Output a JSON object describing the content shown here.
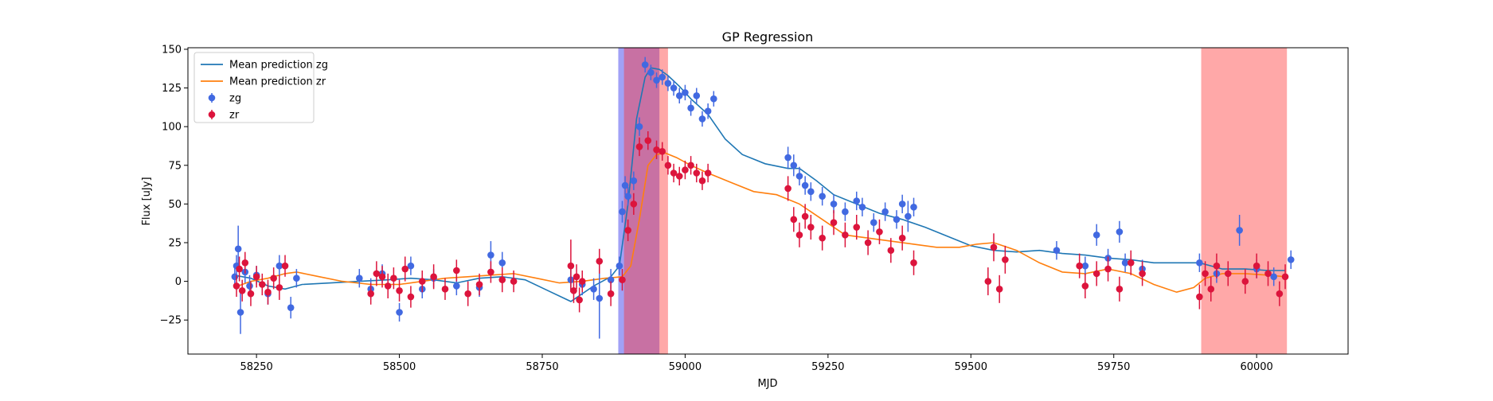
{
  "chart_data": {
    "type": "scatter",
    "title": "GP Regression",
    "xlabel": "MJD",
    "ylabel": "Flux [uJy]",
    "xlim": [
      58130,
      60160
    ],
    "ylim": [
      -47,
      151
    ],
    "xticks": [
      58250,
      58500,
      58750,
      59000,
      59250,
      59500,
      59750,
      60000
    ],
    "yticks": [
      -25,
      0,
      25,
      50,
      75,
      100,
      125,
      150
    ],
    "grid": false,
    "legend_position": "top-left",
    "legend": [
      {
        "label": "Mean prediction zg",
        "kind": "line",
        "color": "#1f77b4"
      },
      {
        "label": "Mean prediction zr",
        "kind": "line",
        "color": "#ff7f0e"
      },
      {
        "label": "zg",
        "kind": "marker",
        "color": "#4169e1"
      },
      {
        "label": "zr",
        "kind": "marker",
        "color": "#dc143c"
      }
    ],
    "shaded_regions": [
      {
        "x0": 58883,
        "x1": 58955,
        "color": "#4444ee",
        "opacity": 0.5
      },
      {
        "x0": 58893,
        "x1": 58970,
        "color": "#ff3030",
        "opacity": 0.42
      },
      {
        "x0": 59903,
        "x1": 60053,
        "color": "#ff3030",
        "opacity": 0.42
      }
    ],
    "series": [
      {
        "name": "Mean prediction zg",
        "kind": "line",
        "color": "#1f77b4",
        "x": [
          58210,
          58240,
          58270,
          58300,
          58330,
          58380,
          58430,
          58480,
          58520,
          58560,
          58600,
          58640,
          58680,
          58720,
          58760,
          58800,
          58840,
          58870,
          58885,
          58900,
          58915,
          58930,
          58940,
          58955,
          58970,
          58990,
          59010,
          59040,
          59070,
          59100,
          59140,
          59180,
          59200,
          59230,
          59260,
          59300,
          59340,
          59380,
          59420,
          59460,
          59500,
          59540,
          59580,
          59620,
          59660,
          59700,
          59740,
          59780,
          59820,
          59860,
          59900,
          59940,
          59980,
          60020,
          60050
        ],
        "y": [
          4,
          2,
          -3,
          -5,
          -2,
          -1,
          0,
          1,
          2,
          1,
          -1,
          2,
          3,
          1,
          -6,
          -13,
          -3,
          3,
          10,
          50,
          105,
          132,
          138,
          137,
          133,
          126,
          118,
          108,
          92,
          82,
          76,
          73,
          73,
          65,
          56,
          50,
          44,
          40,
          35,
          29,
          23,
          20,
          19,
          20,
          18,
          17,
          15,
          14,
          12,
          12,
          12,
          8,
          8,
          7,
          7
        ]
      },
      {
        "name": "Mean prediction zr",
        "kind": "line",
        "color": "#ff7f0e",
        "x": [
          58210,
          58240,
          58270,
          58300,
          58320,
          58360,
          58400,
          58450,
          58500,
          58540,
          58580,
          58620,
          58660,
          58700,
          58740,
          58780,
          58820,
          58860,
          58890,
          58905,
          58920,
          58935,
          58950,
          58965,
          58985,
          59010,
          59040,
          59080,
          59120,
          59160,
          59200,
          59240,
          59280,
          59320,
          59360,
          59400,
          59440,
          59480,
          59510,
          59540,
          59580,
          59620,
          59660,
          59700,
          59740,
          59780,
          59820,
          59860,
          59890,
          59910,
          59940,
          59980,
          60020,
          60050
        ],
        "y": [
          -4,
          0,
          2,
          5,
          6,
          3,
          0,
          -2,
          -2,
          0,
          2,
          3,
          4,
          5,
          2,
          -1,
          0,
          2,
          3,
          10,
          40,
          75,
          82,
          83,
          80,
          75,
          70,
          64,
          58,
          56,
          50,
          40,
          30,
          28,
          26,
          24,
          22,
          22,
          24,
          25,
          20,
          12,
          6,
          5,
          8,
          5,
          -2,
          -7,
          -4,
          2,
          5,
          5,
          4,
          3
        ]
      },
      {
        "name": "zg",
        "kind": "errorbar",
        "color": "#4169e1",
        "x": [
          58212,
          58215,
          58218,
          58222,
          58230,
          58238,
          58250,
          58270,
          58290,
          58310,
          58320,
          58430,
          58450,
          58470,
          58500,
          58520,
          58540,
          58560,
          58600,
          58640,
          58660,
          58680,
          58800,
          58820,
          58840,
          58850,
          58870,
          58885,
          58890,
          58895,
          58900,
          58910,
          58920,
          58930,
          58940,
          58950,
          58960,
          58970,
          58980,
          58990,
          59000,
          59010,
          59020,
          59030,
          59040,
          59050,
          59180,
          59190,
          59200,
          59210,
          59220,
          59240,
          59260,
          59280,
          59300,
          59310,
          59330,
          59350,
          59370,
          59380,
          59390,
          59400,
          59650,
          59700,
          59720,
          59740,
          59760,
          59770,
          59800,
          59900,
          59930,
          59970,
          60000,
          60030,
          60060
        ],
        "y": [
          3,
          10,
          21,
          -20,
          6,
          -3,
          4,
          -8,
          10,
          -17,
          2,
          2,
          -5,
          5,
          -20,
          10,
          -5,
          2,
          -3,
          -4,
          17,
          12,
          1,
          -2,
          -5,
          -11,
          1,
          10,
          45,
          62,
          55,
          65,
          100,
          140,
          135,
          130,
          132,
          128,
          125,
          120,
          122,
          112,
          120,
          105,
          110,
          118,
          80,
          75,
          68,
          62,
          58,
          55,
          50,
          45,
          52,
          48,
          38,
          45,
          40,
          50,
          42,
          48,
          20,
          10,
          30,
          15,
          32,
          12,
          8,
          12,
          5,
          33,
          8,
          3,
          14
        ],
        "err": [
          7,
          7,
          15,
          14,
          7,
          7,
          6,
          7,
          7,
          7,
          6,
          6,
          7,
          6,
          6,
          6,
          6,
          6,
          6,
          6,
          9,
          7,
          7,
          7,
          7,
          26,
          7,
          6,
          7,
          6,
          6,
          6,
          6,
          5,
          5,
          5,
          5,
          5,
          5,
          5,
          5,
          5,
          5,
          5,
          5,
          5,
          7,
          7,
          6,
          6,
          6,
          6,
          6,
          6,
          6,
          6,
          6,
          6,
          6,
          6,
          10,
          6,
          6,
          6,
          7,
          6,
          7,
          6,
          6,
          6,
          6,
          10,
          6,
          6,
          6
        ]
      },
      {
        "name": "zr",
        "kind": "errorbar",
        "color": "#dc143c",
        "x": [
          58215,
          58220,
          58225,
          58230,
          58240,
          58250,
          58260,
          58270,
          58280,
          58290,
          58300,
          58450,
          58460,
          58470,
          58480,
          58490,
          58500,
          58510,
          58520,
          58540,
          58560,
          58580,
          58600,
          58620,
          58640,
          58660,
          58680,
          58700,
          58800,
          58805,
          58810,
          58815,
          58820,
          58850,
          58870,
          58890,
          58900,
          58910,
          58920,
          58935,
          58950,
          58960,
          58970,
          58980,
          58990,
          59000,
          59010,
          59020,
          59030,
          59040,
          59180,
          59190,
          59200,
          59210,
          59220,
          59240,
          59260,
          59280,
          59300,
          59320,
          59340,
          59360,
          59380,
          59400,
          59530,
          59540,
          59550,
          59560,
          59690,
          59700,
          59720,
          59740,
          59760,
          59780,
          59800,
          59900,
          59910,
          59920,
          59930,
          59950,
          59980,
          60000,
          60020,
          60040,
          60050
        ],
        "y": [
          -3,
          8,
          -6,
          12,
          -8,
          3,
          -2,
          -7,
          2,
          -4,
          10,
          -8,
          5,
          3,
          -3,
          2,
          -6,
          8,
          -10,
          0,
          3,
          -5,
          7,
          -8,
          -2,
          6,
          1,
          0,
          10,
          -6,
          3,
          -12,
          0,
          13,
          -8,
          1,
          33,
          50,
          87,
          91,
          85,
          84,
          75,
          70,
          68,
          72,
          75,
          70,
          65,
          70,
          60,
          40,
          30,
          42,
          35,
          28,
          38,
          30,
          35,
          25,
          32,
          20,
          28,
          12,
          0,
          22,
          -5,
          14,
          10,
          -3,
          5,
          8,
          -5,
          12,
          5,
          -10,
          5,
          -5,
          10,
          5,
          0,
          10,
          5,
          -8,
          3
        ],
        "err": [
          7,
          8,
          7,
          7,
          8,
          7,
          7,
          8,
          7,
          8,
          7,
          7,
          8,
          7,
          8,
          7,
          7,
          8,
          7,
          7,
          8,
          7,
          7,
          8,
          7,
          7,
          8,
          7,
          17,
          8,
          8,
          8,
          7,
          8,
          8,
          7,
          7,
          7,
          6,
          6,
          6,
          6,
          6,
          6,
          6,
          6,
          6,
          6,
          6,
          6,
          8,
          8,
          8,
          8,
          8,
          8,
          8,
          8,
          8,
          8,
          8,
          8,
          8,
          8,
          9,
          9,
          9,
          9,
          8,
          8,
          8,
          8,
          8,
          8,
          8,
          8,
          8,
          8,
          8,
          8,
          8,
          8,
          8,
          8,
          8
        ]
      }
    ]
  }
}
